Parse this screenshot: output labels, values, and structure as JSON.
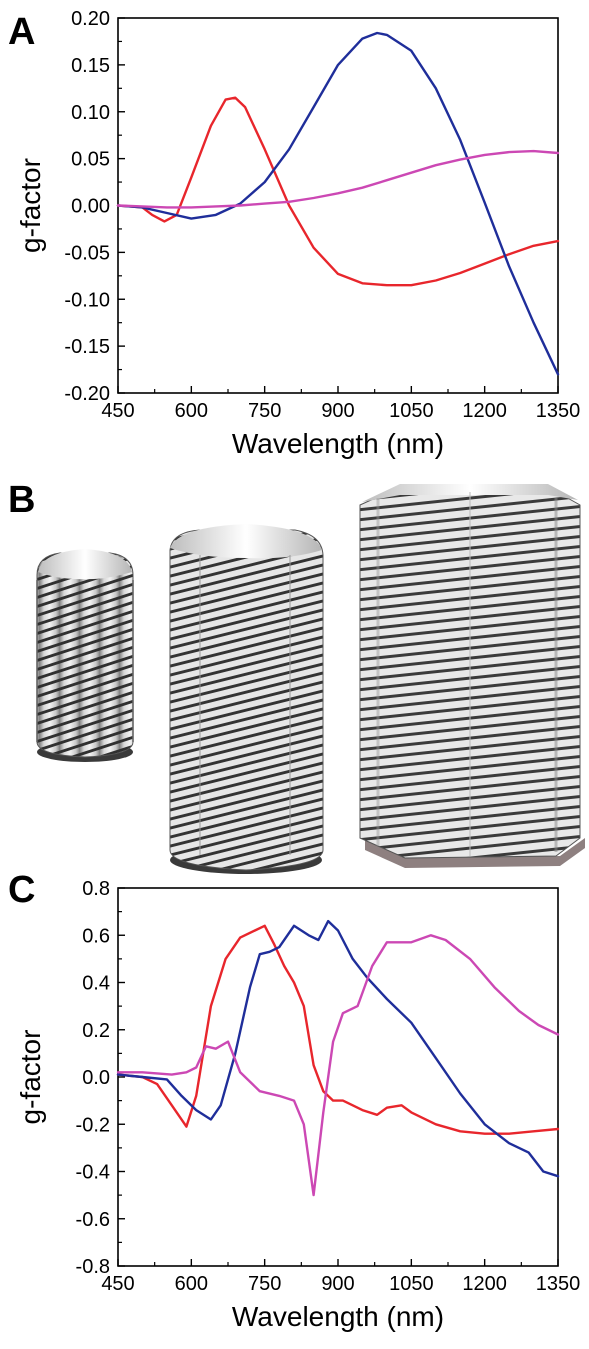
{
  "panels": {
    "a_label": "A",
    "b_label": "B",
    "c_label": "C"
  },
  "chart_data": [
    {
      "type": "line",
      "panel": "A",
      "xlabel": "Wavelength (nm)",
      "ylabel": "g-factor",
      "xlim": [
        450,
        1350
      ],
      "ylim": [
        -0.2,
        0.2
      ],
      "xticks": [
        450,
        600,
        750,
        900,
        1050,
        1200,
        1350
      ],
      "yticks": [
        -0.2,
        -0.15,
        -0.1,
        -0.05,
        0.0,
        0.05,
        0.1,
        0.15,
        0.2
      ],
      "ytick_labels": [
        "-0.20",
        "-0.15",
        "-0.10",
        "-0.05",
        "0.00",
        "0.05",
        "0.10",
        "0.15",
        "0.20"
      ],
      "grid": false,
      "series": [
        {
          "color": "#e8262c",
          "x": [
            450,
            500,
            520,
            545,
            570,
            600,
            640,
            670,
            690,
            710,
            750,
            800,
            850,
            900,
            950,
            1000,
            1050,
            1100,
            1150,
            1200,
            1250,
            1300,
            1350
          ],
          "y": [
            0.0,
            -0.002,
            -0.01,
            -0.017,
            -0.01,
            0.03,
            0.085,
            0.113,
            0.115,
            0.105,
            0.06,
            0.0,
            -0.045,
            -0.073,
            -0.083,
            -0.085,
            -0.085,
            -0.08,
            -0.072,
            -0.062,
            -0.052,
            -0.043,
            -0.038
          ]
        },
        {
          "color": "#1f2e9a",
          "x": [
            450,
            500,
            550,
            600,
            650,
            700,
            750,
            800,
            850,
            900,
            950,
            980,
            1000,
            1050,
            1100,
            1150,
            1200,
            1250,
            1300,
            1350
          ],
          "y": [
            0.0,
            -0.002,
            -0.008,
            -0.014,
            -0.01,
            0.002,
            0.025,
            0.06,
            0.105,
            0.15,
            0.178,
            0.184,
            0.182,
            0.165,
            0.125,
            0.07,
            0.003,
            -0.065,
            -0.125,
            -0.18
          ]
        },
        {
          "color": "#cc48b4",
          "x": [
            450,
            500,
            550,
            600,
            650,
            700,
            750,
            800,
            850,
            900,
            950,
            1000,
            1050,
            1100,
            1150,
            1200,
            1250,
            1300,
            1350
          ],
          "y": [
            0.0,
            -0.001,
            -0.002,
            -0.002,
            -0.001,
            0.0,
            0.002,
            0.004,
            0.008,
            0.013,
            0.019,
            0.027,
            0.035,
            0.043,
            0.049,
            0.054,
            0.057,
            0.058,
            0.056
          ]
        }
      ]
    },
    {
      "type": "line",
      "panel": "C",
      "xlabel": "Wavelength (nm)",
      "ylabel": "g-factor",
      "xlim": [
        450,
        1350
      ],
      "ylim": [
        -0.8,
        0.8
      ],
      "xticks": [
        450,
        600,
        750,
        900,
        1050,
        1200,
        1350
      ],
      "yticks": [
        -0.8,
        -0.6,
        -0.4,
        -0.2,
        0.0,
        0.2,
        0.4,
        0.6,
        0.8
      ],
      "ytick_labels": [
        "-0.8",
        "-0.6",
        "-0.4",
        "-0.2",
        "0.0",
        "0.2",
        "0.4",
        "0.6",
        "0.8"
      ],
      "grid": false,
      "series": [
        {
          "color": "#e8262c",
          "x": [
            450,
            500,
            530,
            560,
            590,
            610,
            640,
            670,
            700,
            730,
            750,
            770,
            790,
            810,
            830,
            850,
            870,
            890,
            910,
            930,
            950,
            980,
            1000,
            1030,
            1050,
            1100,
            1150,
            1200,
            1250,
            1300,
            1350
          ],
          "y": [
            0.01,
            0.0,
            -0.03,
            -0.12,
            -0.21,
            -0.08,
            0.3,
            0.5,
            0.59,
            0.62,
            0.64,
            0.56,
            0.47,
            0.4,
            0.3,
            0.05,
            -0.06,
            -0.1,
            -0.1,
            -0.12,
            -0.14,
            -0.16,
            -0.13,
            -0.12,
            -0.15,
            -0.2,
            -0.23,
            -0.24,
            -0.24,
            -0.23,
            -0.22
          ]
        },
        {
          "color": "#1f2e9a",
          "x": [
            450,
            500,
            550,
            580,
            610,
            640,
            660,
            690,
            720,
            740,
            760,
            780,
            810,
            840,
            860,
            880,
            900,
            930,
            960,
            1000,
            1050,
            1100,
            1150,
            1200,
            1250,
            1290,
            1320,
            1350
          ],
          "y": [
            0.01,
            0.0,
            -0.01,
            -0.08,
            -0.14,
            -0.18,
            -0.12,
            0.1,
            0.38,
            0.52,
            0.53,
            0.55,
            0.64,
            0.6,
            0.58,
            0.66,
            0.62,
            0.5,
            0.42,
            0.33,
            0.23,
            0.08,
            -0.07,
            -0.2,
            -0.28,
            -0.32,
            -0.4,
            -0.42
          ]
        },
        {
          "color": "#cc48b4",
          "x": [
            450,
            500,
            560,
            590,
            610,
            630,
            650,
            675,
            700,
            740,
            780,
            810,
            830,
            850,
            870,
            890,
            910,
            940,
            970,
            1000,
            1050,
            1090,
            1120,
            1170,
            1220,
            1270,
            1310,
            1350
          ],
          "y": [
            0.02,
            0.02,
            0.01,
            0.02,
            0.04,
            0.13,
            0.12,
            0.15,
            0.02,
            -0.06,
            -0.08,
            -0.1,
            -0.2,
            -0.5,
            -0.15,
            0.15,
            0.27,
            0.3,
            0.47,
            0.57,
            0.57,
            0.6,
            0.58,
            0.5,
            0.38,
            0.28,
            0.22,
            0.18
          ]
        }
      ]
    }
  ]
}
